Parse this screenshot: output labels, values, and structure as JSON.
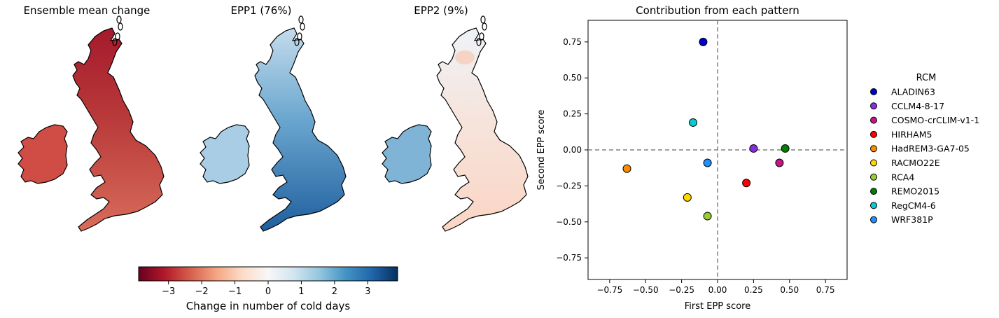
{
  "panels": {
    "map1_title": "Ensemble mean change",
    "map2_title": "EPP1 (76%)",
    "map3_title": "EPP2 (9%)",
    "scatter_title": "Contribution from each pattern"
  },
  "colorbar": {
    "label": "Change in number of cold days",
    "ticks": [
      -3,
      -2,
      -1,
      0,
      1,
      2,
      3
    ],
    "range": [
      -3.9,
      3.9
    ],
    "colormap": [
      "#67001f",
      "#b2182b",
      "#d6604d",
      "#f4a582",
      "#fddbc7",
      "#f7f7f7",
      "#d1e5f0",
      "#92c5de",
      "#4393c3",
      "#2166ac",
      "#053061"
    ]
  },
  "map_fill": {
    "map1": {
      "north": "#a51a2c",
      "mid": "#b93a3a",
      "south": "#d86c5a",
      "ireland": "#d04d45",
      "north_value": -3.4,
      "south_value": -2.2
    },
    "map2": {
      "north": "#c5dcec",
      "mid": "#6aa6cf",
      "south": "#1f5f9e",
      "ireland": "#a9cde4",
      "north_value": 0.9,
      "south_value": 3.0
    },
    "map3": {
      "north": "#eef3f7",
      "mid": "#f6e4dc",
      "south": "#fbd5c4",
      "ireland": "#7fb4d7",
      "scotland_east": "#f6cdbb",
      "north_value": 0.2,
      "south_value": -0.4
    }
  },
  "chart_data": {
    "type": "scatter",
    "title": "Contribution from each pattern",
    "xlabel": "First EPP score",
    "ylabel": "Second EPP score",
    "xlim": [
      -0.9,
      0.9
    ],
    "ylim": [
      -0.9,
      0.9
    ],
    "xticks": [
      -0.75,
      -0.5,
      -0.25,
      0.0,
      0.25,
      0.5,
      0.75
    ],
    "yticks": [
      -0.75,
      -0.5,
      -0.25,
      0.0,
      0.25,
      0.5,
      0.75
    ],
    "reference_lines": {
      "x": 0,
      "y": 0,
      "style": "dashed",
      "color": "#808080"
    },
    "legend_title": "RCM",
    "legend_position": "right",
    "points": [
      {
        "name": "ALADIN63",
        "x": -0.1,
        "y": 0.75,
        "color": "#0000cd"
      },
      {
        "name": "CCLM4-8-17",
        "x": 0.25,
        "y": 0.01,
        "color": "#8a2be2"
      },
      {
        "name": "COSMO-crCLIM-v1-1",
        "x": 0.43,
        "y": -0.09,
        "color": "#c71585"
      },
      {
        "name": "HIRHAM5",
        "x": 0.2,
        "y": -0.23,
        "color": "#ff0000"
      },
      {
        "name": "HadREM3-GA7-05",
        "x": -0.63,
        "y": -0.13,
        "color": "#ff8c00"
      },
      {
        "name": "RACMO22E",
        "x": -0.21,
        "y": -0.33,
        "color": "#ffd700"
      },
      {
        "name": "RCA4",
        "x": -0.07,
        "y": -0.46,
        "color": "#9acd32"
      },
      {
        "name": "REMO2015",
        "x": 0.47,
        "y": 0.01,
        "color": "#008000"
      },
      {
        "name": "RegCM4-6",
        "x": -0.17,
        "y": 0.19,
        "color": "#00ced1"
      },
      {
        "name": "WRF381P",
        "x": -0.07,
        "y": -0.09,
        "color": "#1e90ff"
      }
    ]
  }
}
